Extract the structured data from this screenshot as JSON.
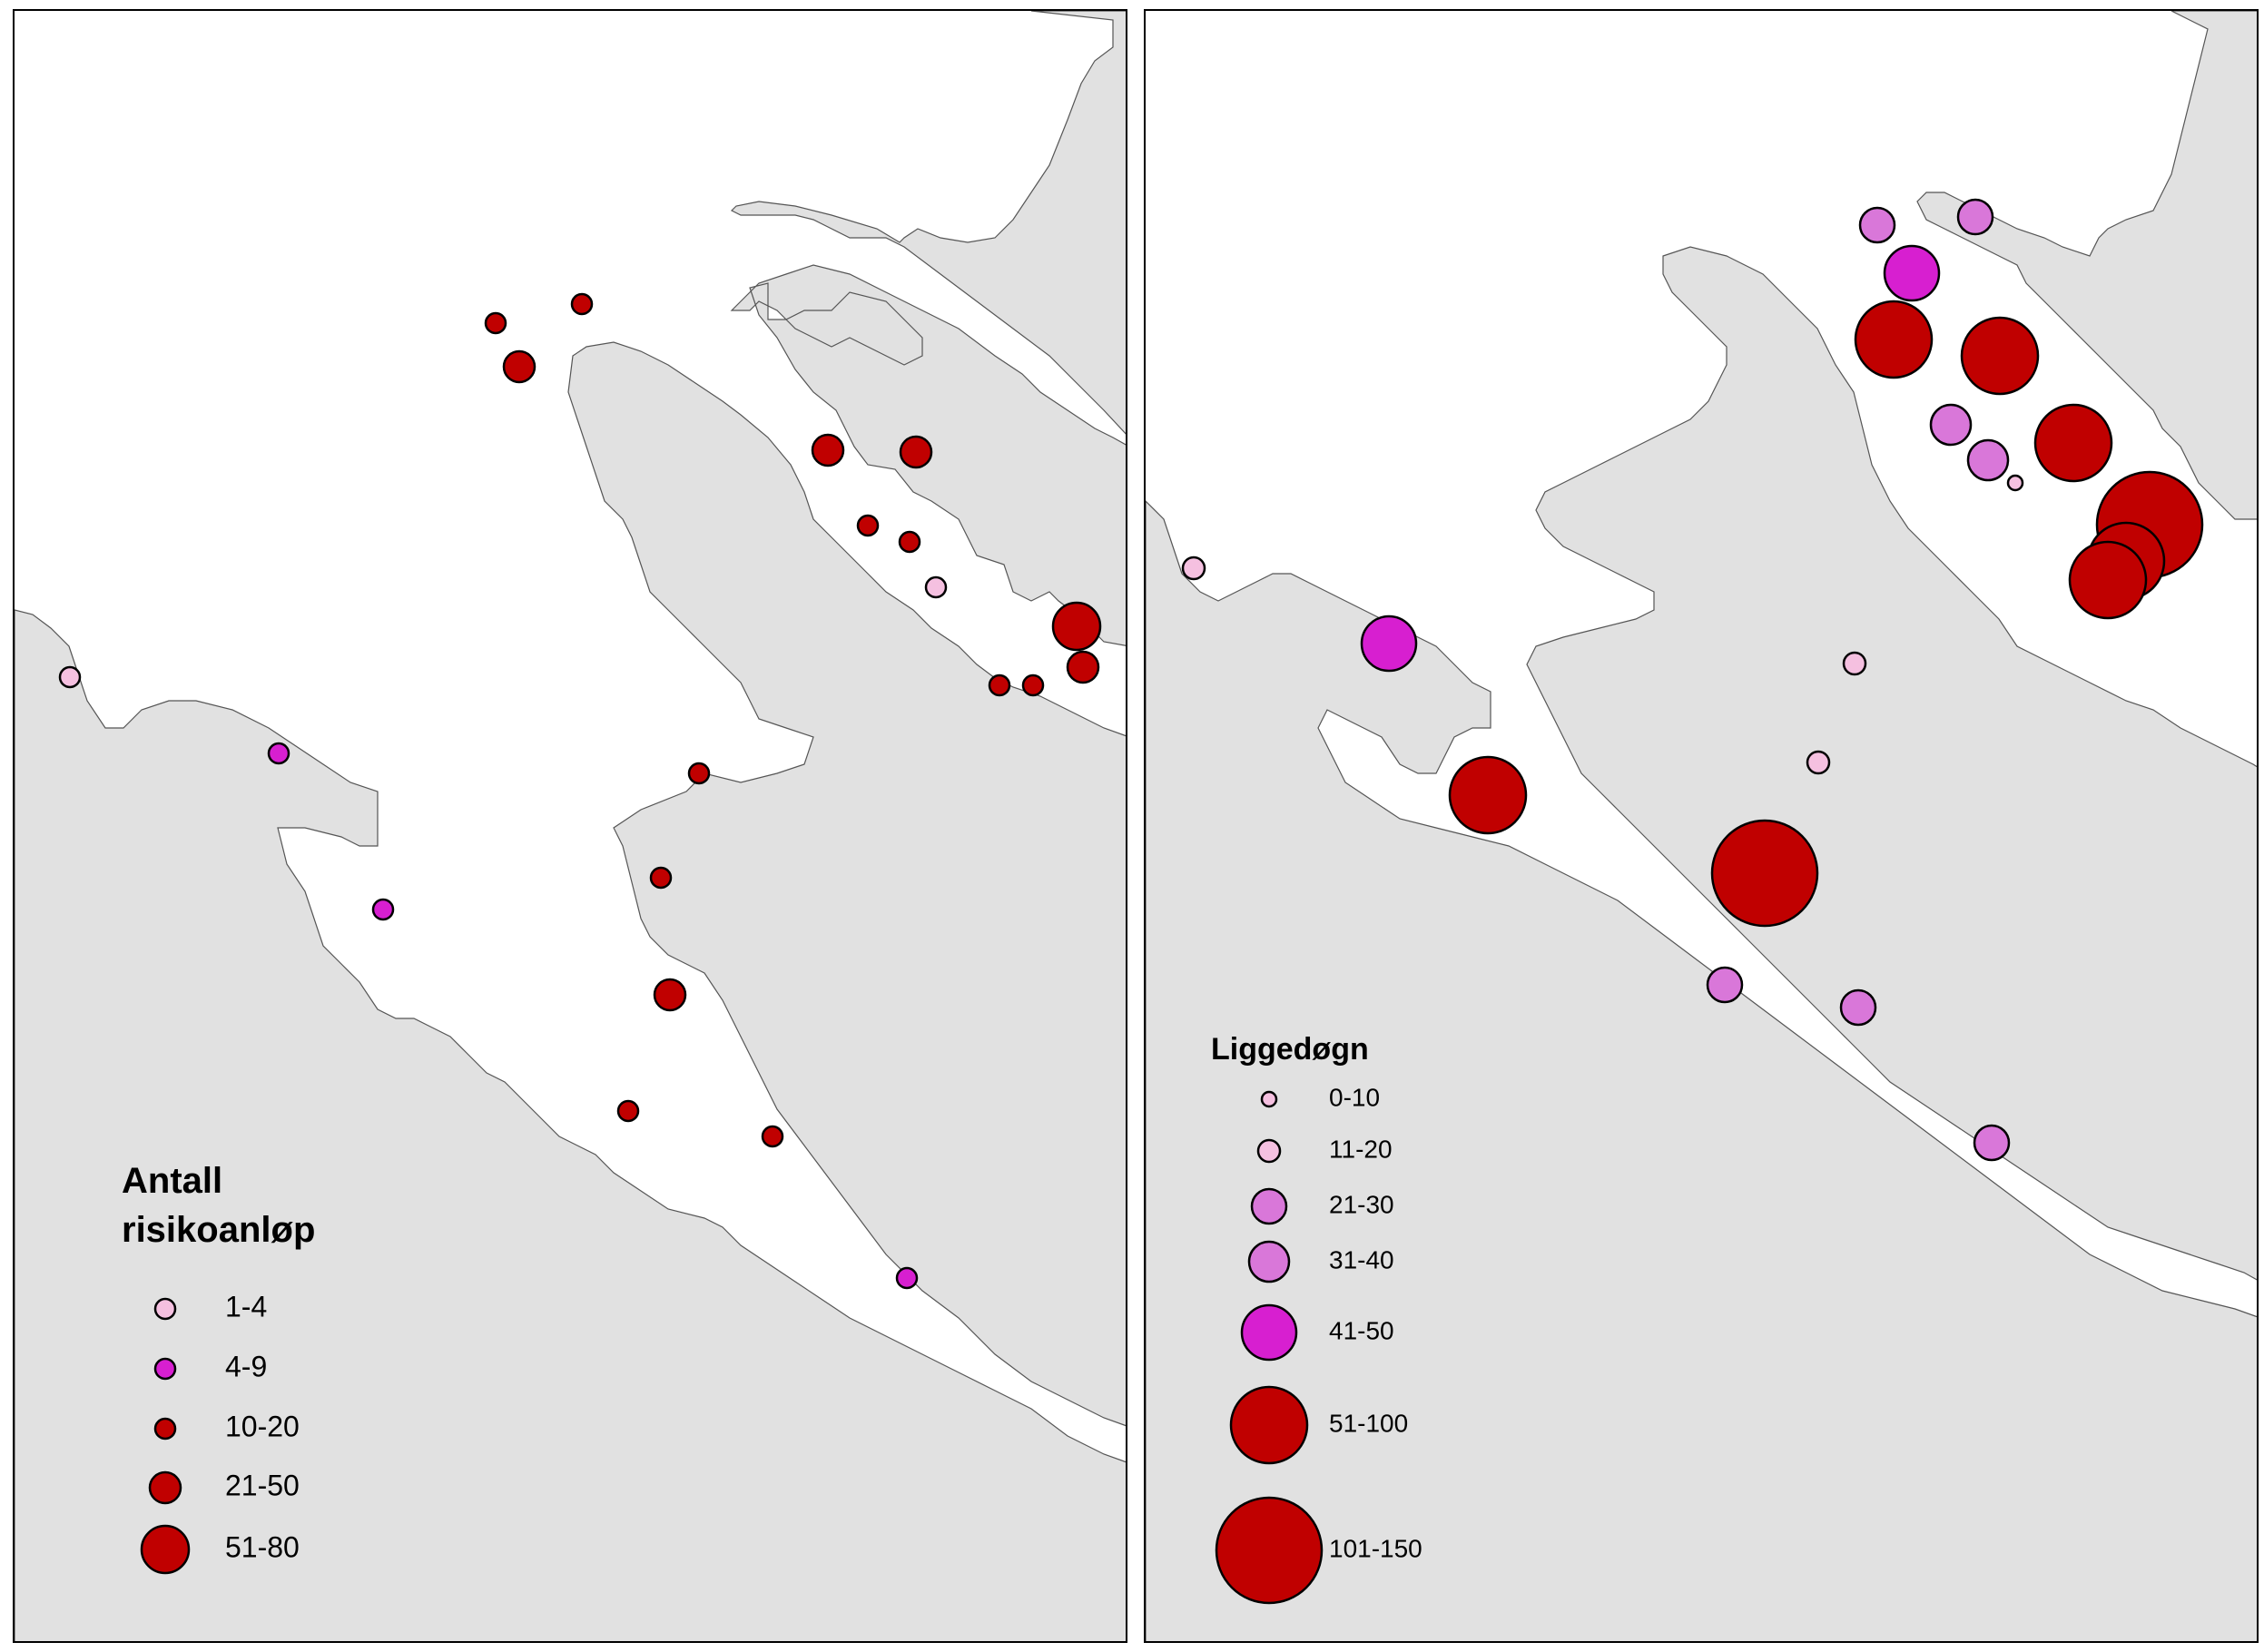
{
  "colors": {
    "land": "#e1e1e1",
    "water": "#ffffff",
    "class_light": "#f5c0e0",
    "class_medium": "#d977d9",
    "class_magenta": "#d71fd0",
    "class_red": "#c00000",
    "outline": "#000000"
  },
  "maps": [
    {
      "legend": {
        "title_line1": "Antall",
        "title_line2": "risikoanløp",
        "classes": [
          {
            "label": "1-4",
            "color": "#f5c0e0",
            "rank": 1
          },
          {
            "label": "4-9",
            "color": "#d71fd0",
            "rank": 2
          },
          {
            "label": "10-20",
            "color": "#c00000",
            "rank": 2
          },
          {
            "label": "21-50",
            "color": "#c00000",
            "rank": 3
          },
          {
            "label": "51-80",
            "color": "#c00000",
            "rank": 4
          }
        ]
      },
      "symbols": [
        {
          "class": "21-50"
        },
        {
          "class": "10-20"
        },
        {
          "class": "10-20"
        },
        {
          "class": "21-50"
        },
        {
          "class": "21-50"
        },
        {
          "class": "10-20"
        },
        {
          "class": "10-20"
        },
        {
          "class": "10-20"
        },
        {
          "class": "1-4"
        },
        {
          "class": "51-80"
        },
        {
          "class": "21-50"
        },
        {
          "class": "10-20"
        },
        {
          "class": "1-4"
        },
        {
          "class": "4-9"
        },
        {
          "class": "4-9"
        },
        {
          "class": "10-20"
        },
        {
          "class": "10-20"
        },
        {
          "class": "21-50"
        },
        {
          "class": "10-20"
        },
        {
          "class": "10-20"
        },
        {
          "class": "4-9"
        }
      ]
    },
    {
      "legend": {
        "title_line1": "Liggedøgn",
        "classes": [
          {
            "label": "0-10",
            "color": "#f5c0e0",
            "rank": 1
          },
          {
            "label": "11-20",
            "color": "#f5c0e0",
            "rank": 2
          },
          {
            "label": "21-30",
            "color": "#d977d9",
            "rank": 3
          },
          {
            "label": "31-40",
            "color": "#d977d9",
            "rank": 4
          },
          {
            "label": "41-50",
            "color": "#d71fd0",
            "rank": 5
          },
          {
            "label": "51-100",
            "color": "#c00000",
            "rank": 6
          },
          {
            "label": "101-150",
            "color": "#c00000",
            "rank": 7
          }
        ]
      },
      "symbols": [
        {
          "class": "21-30"
        },
        {
          "class": "21-30"
        },
        {
          "class": "41-50"
        },
        {
          "class": "51-100"
        },
        {
          "class": "51-100"
        },
        {
          "class": "51-100"
        },
        {
          "class": "31-40"
        },
        {
          "class": "31-40"
        },
        {
          "class": "0-10"
        },
        {
          "class": "101-150"
        },
        {
          "class": "51-100"
        },
        {
          "class": "51-100"
        },
        {
          "class": "11-20"
        },
        {
          "class": "41-50"
        },
        {
          "class": "11-20"
        },
        {
          "class": "11-20"
        },
        {
          "class": "51-100"
        },
        {
          "class": "101-150"
        },
        {
          "class": "21-30"
        },
        {
          "class": "21-30"
        },
        {
          "class": "21-30"
        }
      ]
    }
  ]
}
